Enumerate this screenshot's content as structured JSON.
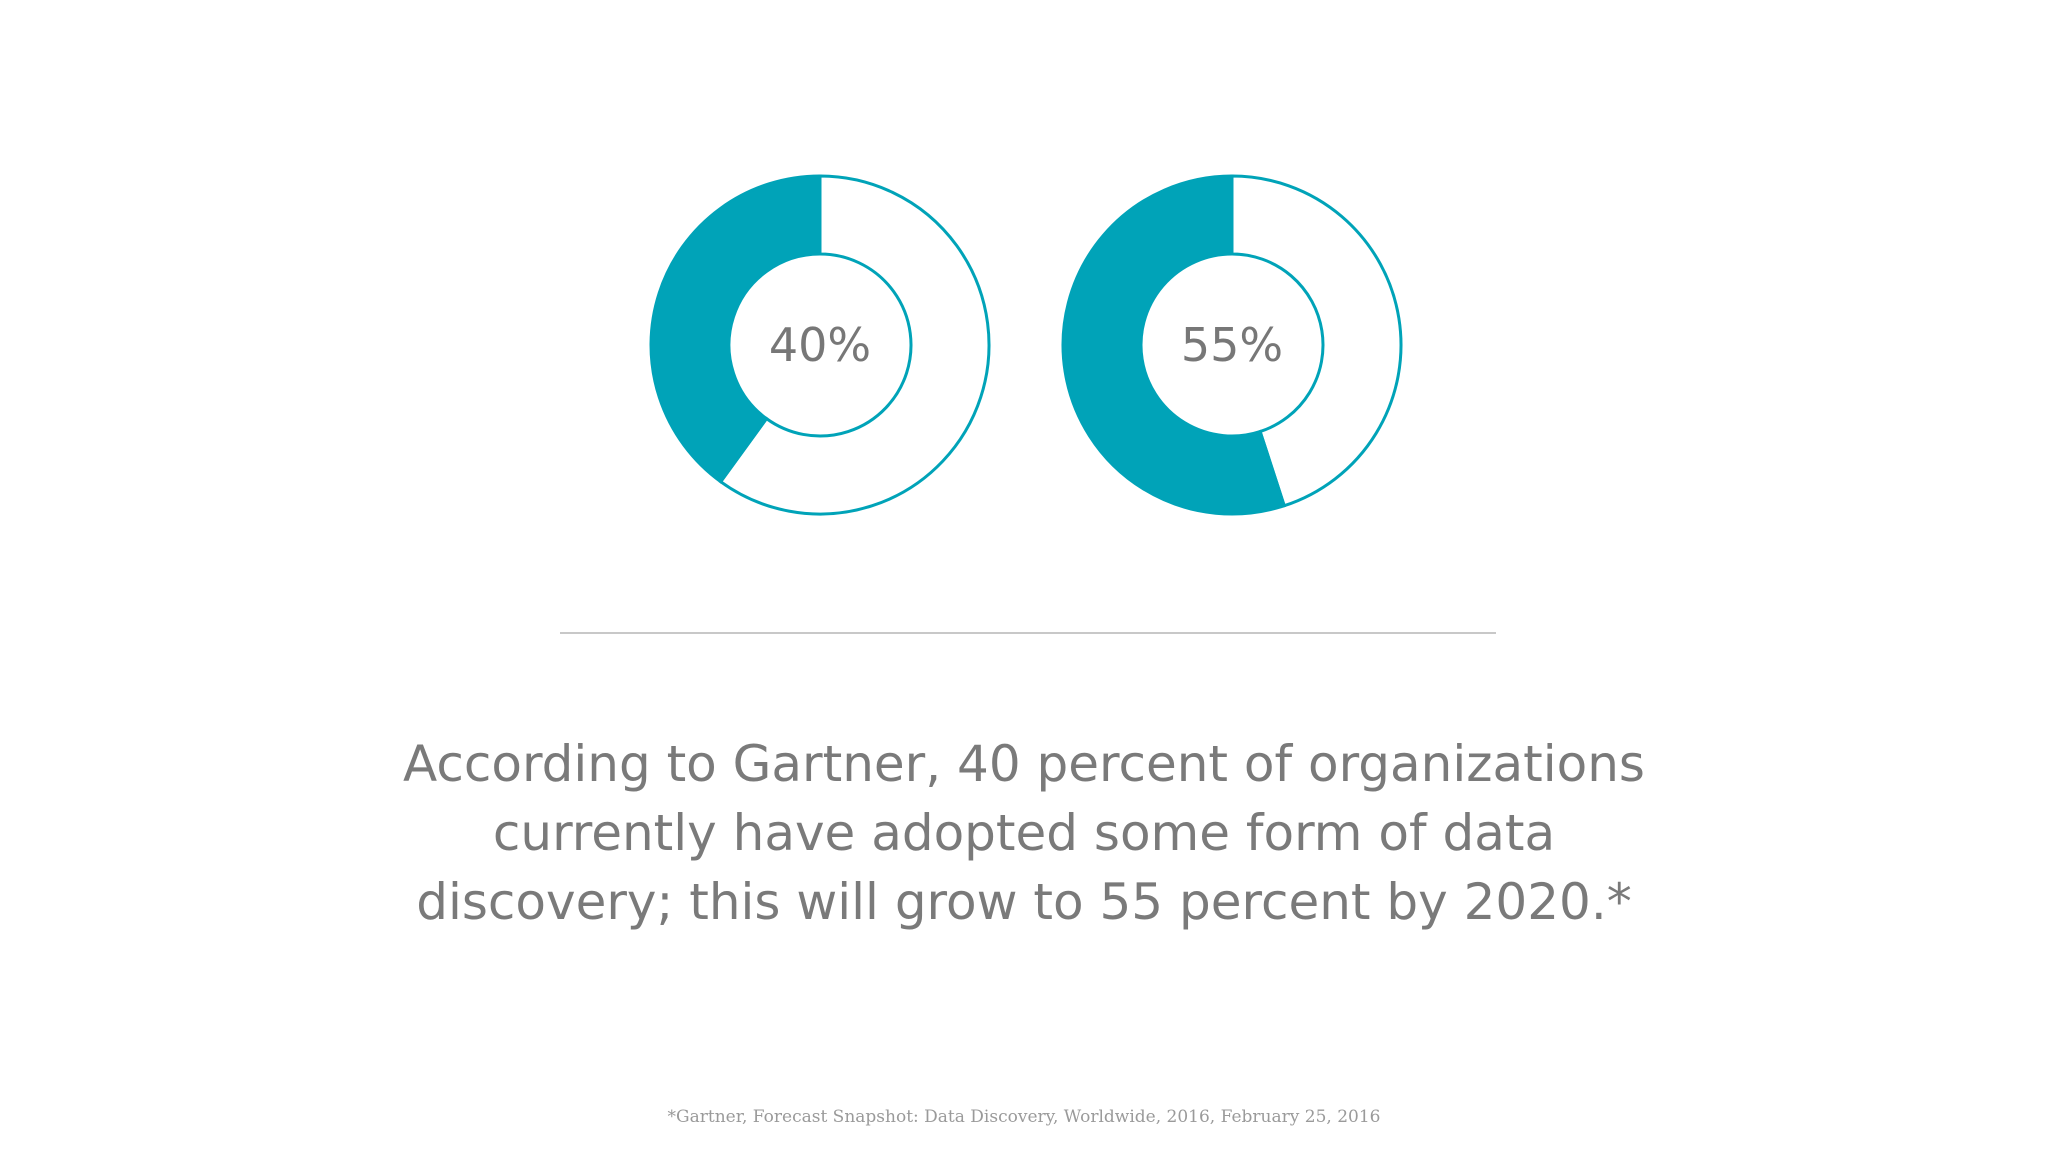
{
  "colors": {
    "accent": "#00a3b8",
    "ring_outline": "#00a3b8",
    "label": "#777777",
    "statement_text": "#7a7a7a",
    "divider": "#c8c8c8",
    "footnote": "#9a9a9a"
  },
  "chart_data": [
    {
      "type": "pie",
      "variant": "donut",
      "values": [
        40,
        60
      ],
      "highlighted_value": 40,
      "center_label": "40%"
    },
    {
      "type": "pie",
      "variant": "donut",
      "values": [
        55,
        45
      ],
      "highlighted_value": 55,
      "center_label": "55%"
    }
  ],
  "statement": {
    "line1": "According to Gartner, 40 percent of organizations",
    "line2": "currently have adopted some form of data",
    "line3": "discovery; this will grow to 55 percent by 2020.*"
  },
  "footnote": "*Gartner, Forecast Snapshot: Data Discovery, Worldwide, 2016, February 25, 2016"
}
